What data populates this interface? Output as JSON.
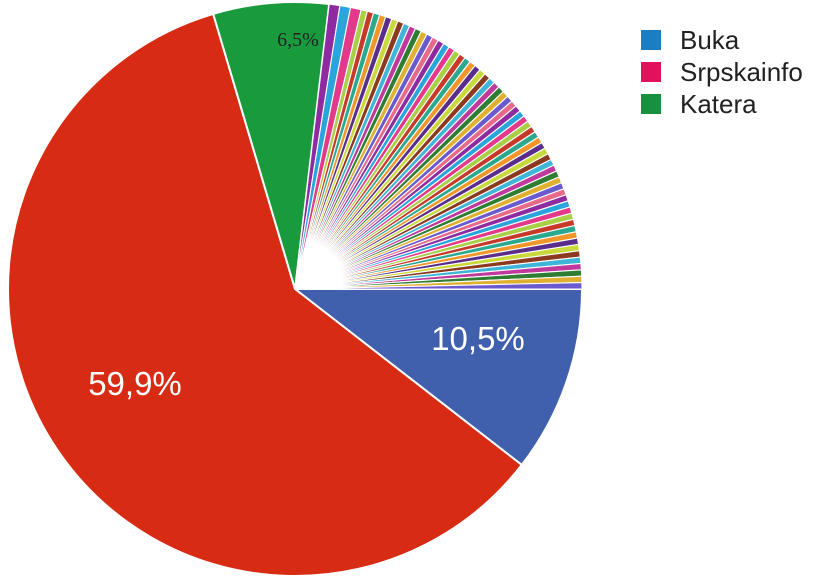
{
  "chart_data": {
    "type": "pie",
    "title": "",
    "legend_position": "top-right",
    "legend": [
      {
        "label": "Buka",
        "color": "#1b7dc2"
      },
      {
        "label": "Srpskainfo",
        "color": "#e3105e"
      },
      {
        "label": "Katera",
        "color": "#179040"
      }
    ],
    "slices": [
      {
        "value": 10.5,
        "label": "10,5%",
        "color": "#4060ad",
        "label_color": "#ffffff"
      },
      {
        "value": 59.9,
        "label": "59,9%",
        "color": "#d72b14",
        "label_color": "#ffffff"
      },
      {
        "value": 6.5,
        "label": "6,5%",
        "color": "#189a3d",
        "label_color": "#222222"
      }
    ],
    "small_slices": {
      "values": [
        0.6,
        0.6,
        0.6,
        0.355,
        0.355,
        0.355,
        0.355,
        0.355,
        0.355,
        0.355,
        0.355,
        0.355,
        0.355,
        0.355,
        0.355,
        0.355,
        0.355,
        0.355,
        0.355,
        0.355,
        0.355,
        0.355,
        0.355,
        0.355,
        0.355,
        0.355,
        0.355,
        0.355,
        0.355,
        0.355,
        0.355,
        0.355,
        0.355,
        0.355,
        0.355,
        0.355,
        0.355,
        0.355,
        0.355,
        0.355,
        0.355,
        0.355,
        0.355,
        0.355,
        0.355,
        0.355,
        0.355,
        0.355,
        0.355,
        0.355,
        0.355,
        0.355,
        0.355,
        0.355,
        0.355,
        0.355,
        0.355,
        0.355,
        0.355,
        0.355,
        0.355,
        0.355,
        0.355
      ],
      "colors": [
        "#8e2ba0",
        "#2aa5dc",
        "#e4388a",
        "#a8cf45",
        "#c73a2a",
        "#2aa98f",
        "#f0962a",
        "#5a2d8a",
        "#c9d83a",
        "#8b3a1f",
        "#3fb5d8",
        "#c0399c",
        "#2f7d32",
        "#e0b030",
        "#6a5acd",
        "#e86a8a"
      ]
    }
  }
}
